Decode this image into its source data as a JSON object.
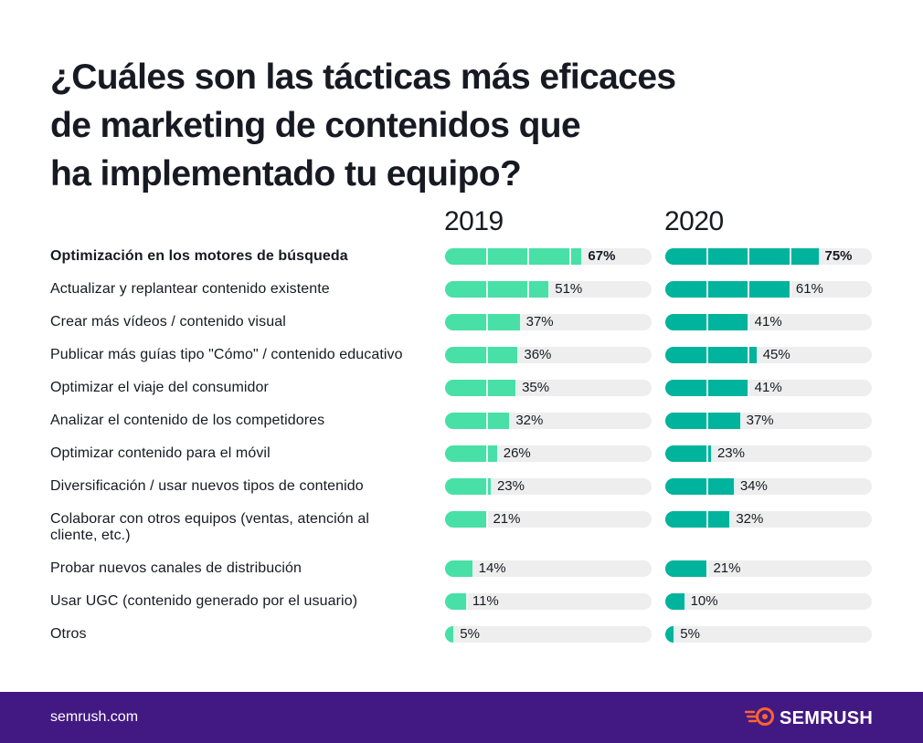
{
  "title_lines": [
    "¿Cuáles son las tácticas más eficaces",
    "de marketing de contenidos que",
    "ha implementado tu equipo?"
  ],
  "colors": {
    "bar_2019": "#48e0a6",
    "bar_2020": "#00b39c",
    "track": "#eeeeee",
    "footer": "#421983",
    "logo_accent": "#ff642d"
  },
  "chart_data": {
    "type": "bar",
    "orientation": "horizontal",
    "xlim": [
      0,
      100
    ],
    "unit": "%",
    "categories": [
      "Optimización en los motores de búsqueda",
      "Actualizar y replantear contenido existente",
      "Crear más vídeos / contenido visual",
      "Publicar más guías tipo \"Cómo\" / contenido educativo",
      "Optimizar el viaje del consumidor",
      "Analizar el contenido de los competidores",
      "Optimizar contenido para el móvil",
      "Diversificación / usar nuevos tipos de contenido",
      "Colaborar con otros equipos (ventas, atención al cliente, etc.)",
      "Probar nuevos canales de distribución",
      "Usar UGC (contenido generado por el usuario)",
      "Otros"
    ],
    "series": [
      {
        "name": "2019",
        "values": [
          67,
          51,
          37,
          36,
          35,
          32,
          26,
          23,
          21,
          14,
          11,
          5
        ]
      },
      {
        "name": "2020",
        "values": [
          75,
          61,
          41,
          45,
          41,
          37,
          23,
          34,
          32,
          21,
          10,
          5
        ]
      }
    ],
    "highlighted_category_index": 0
  },
  "footer": {
    "url": "semrush.com",
    "logo_text": "SEMRUSH",
    "logo_icon": "semrush-fireball-icon"
  }
}
